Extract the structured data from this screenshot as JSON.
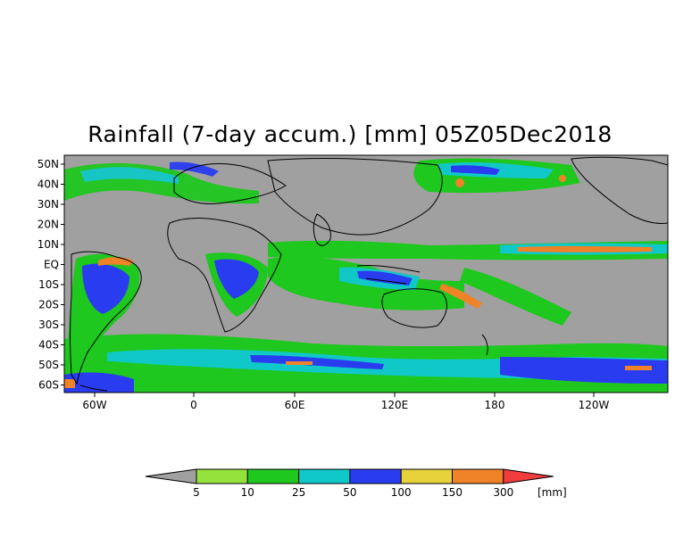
{
  "title": "Rainfall (7-day accum.) [mm] 05Z05Dec2018",
  "lat_labels": [
    "50N",
    "40N",
    "30N",
    "20N",
    "10N",
    "EQ",
    "10S",
    "20S",
    "30S",
    "40S",
    "50S",
    "60S"
  ],
  "lon_labels": [
    "60W",
    "0",
    "60E",
    "120E",
    "180",
    "120W"
  ],
  "legend": {
    "levels": [
      "5",
      "10",
      "25",
      "50",
      "100",
      "150",
      "300"
    ],
    "unit": "[mm]",
    "colors": [
      "#a0a0a0",
      "#96e23c",
      "#1ec81e",
      "#10c8c8",
      "#2a3cf0",
      "#e8d23c",
      "#f08228",
      "#f03c3c"
    ]
  },
  "map_colors": {
    "background_dry": "#a0a0a0",
    "coastline": "#000000"
  }
}
